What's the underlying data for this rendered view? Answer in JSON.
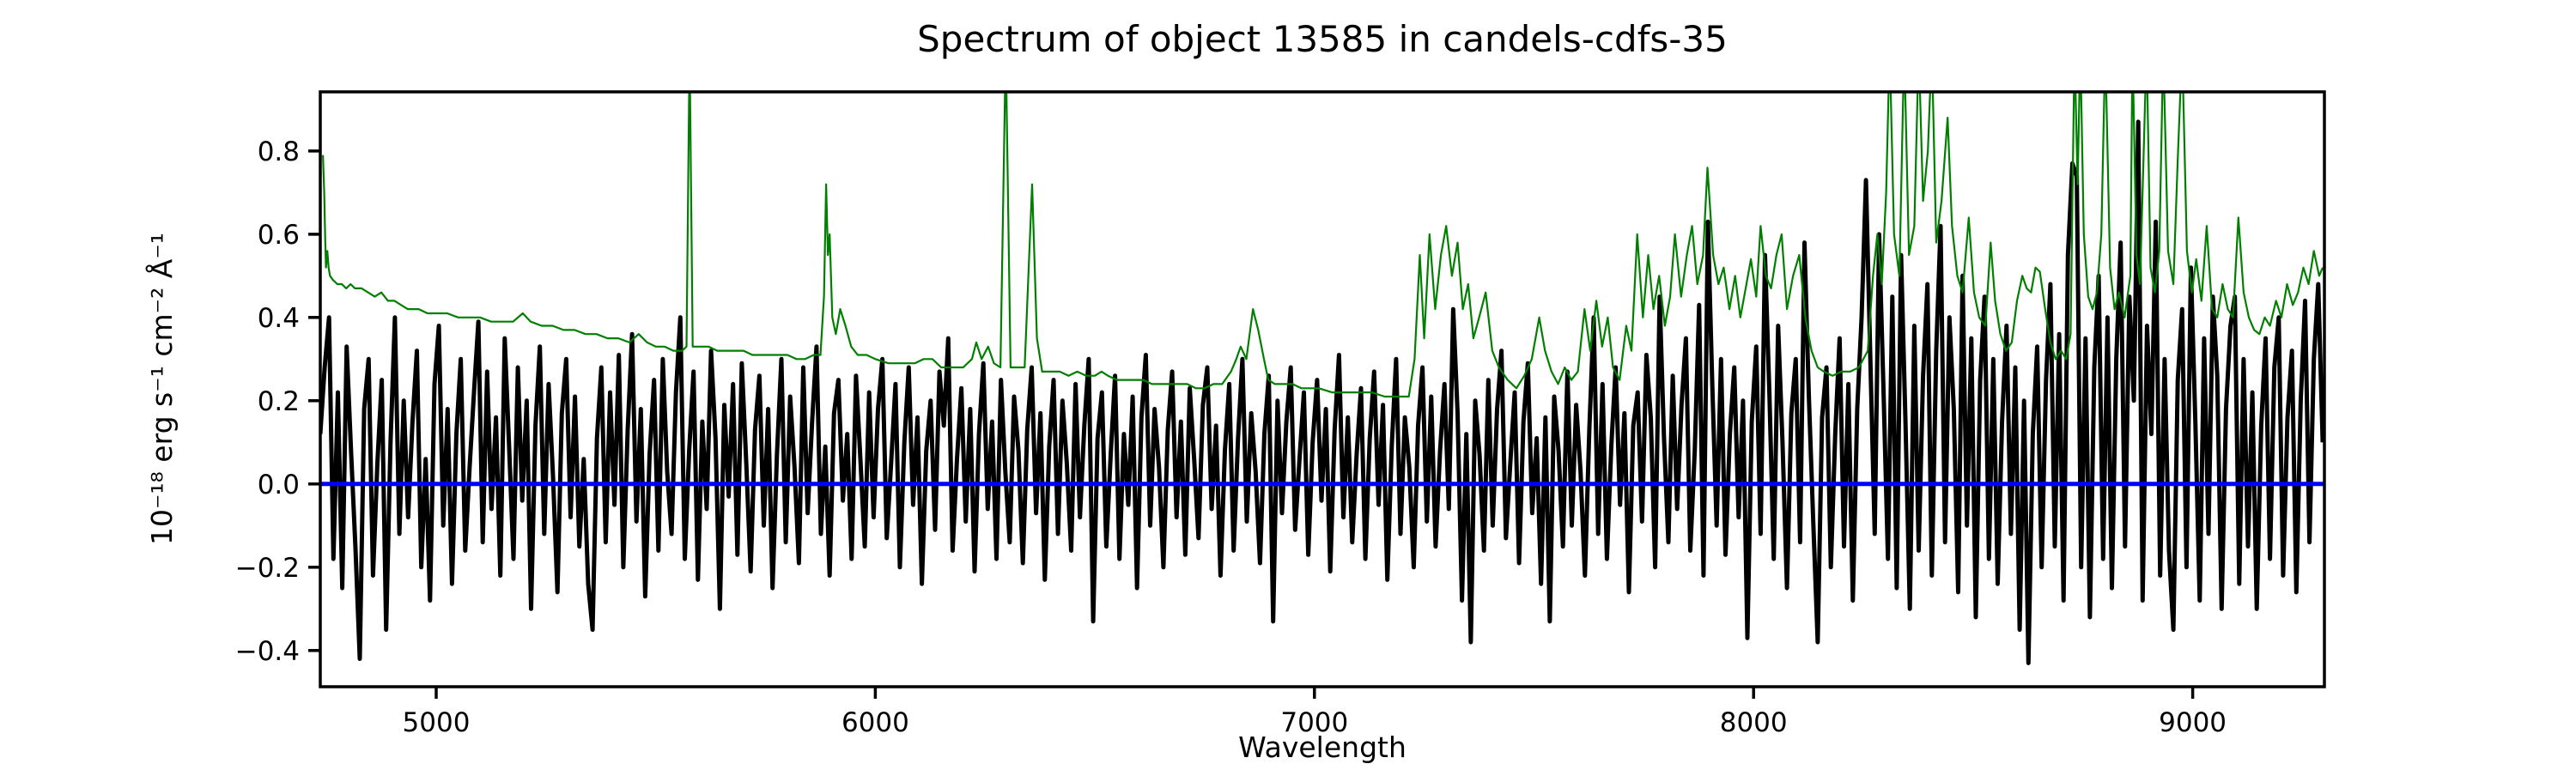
{
  "chart_data": {
    "type": "line",
    "title": "Spectrum of object 13585 in candels-cdfs-35",
    "xlabel": "Wavelength",
    "ylabel": "10⁻¹⁸ erg s⁻¹ cm⁻² Å⁻¹",
    "background": "#ffffff",
    "grid": false,
    "legend": "none",
    "xlim": [
      4736,
      9300
    ],
    "ylim": [
      -0.487,
      0.942
    ],
    "xticks": {
      "values": [
        5000,
        6000,
        7000,
        8000,
        9000
      ],
      "labels": [
        "5000",
        "6000",
        "7000",
        "8000",
        "9000"
      ]
    },
    "yticks": {
      "values": [
        -0.4,
        -0.2,
        0.0,
        0.2,
        0.4,
        0.6,
        0.8
      ],
      "labels": [
        "−0.4",
        "−0.2",
        "0.0",
        "0.2",
        "0.4",
        "0.6",
        "0.8"
      ]
    },
    "series": [
      {
        "name": "flux-spectrum",
        "color": "#000000",
        "line_width": 5,
        "x_start": 4736,
        "x_step": 10,
        "y_scale": 0.01,
        "values": [
          12,
          28,
          40,
          -18,
          22,
          -25,
          33,
          8,
          -15,
          -42,
          18,
          30,
          -22,
          5,
          25,
          -35,
          10,
          40,
          -12,
          20,
          -8,
          15,
          32,
          -20,
          6,
          -28,
          24,
          38,
          -10,
          18,
          -24,
          12,
          30,
          -16,
          4,
          22,
          39,
          -14,
          27,
          -6,
          16,
          -22,
          35,
          9,
          -18,
          28,
          -4,
          20,
          -30,
          14,
          33,
          -12,
          24,
          2,
          -26,
          17,
          30,
          -8,
          21,
          -15,
          6,
          -24,
          -35,
          11,
          28,
          -14,
          22,
          -5,
          31,
          -20,
          13,
          36,
          -9,
          18,
          -27,
          7,
          25,
          -16,
          30,
          3,
          -12,
          22,
          40,
          -18,
          8,
          27,
          -23,
          15,
          -6,
          32,
          11,
          -30,
          19,
          -3,
          24,
          -17,
          29,
          5,
          -21,
          13,
          26,
          -10,
          18,
          -25,
          7,
          30,
          -14,
          21,
          4,
          -19,
          28,
          -7,
          15,
          33,
          -12,
          9,
          -22,
          17,
          25,
          -4,
          12,
          -18,
          26,
          6,
          -15,
          22,
          -8,
          18,
          30,
          -13,
          5,
          24,
          -20,
          10,
          28,
          -5,
          16,
          -24,
          8,
          20,
          -11,
          27,
          14,
          35,
          -16,
          6,
          23,
          -9,
          18,
          -21,
          12,
          29,
          -6,
          15,
          -18,
          25,
          3,
          -14,
          21,
          8,
          -19,
          13,
          28,
          -7,
          17,
          -23,
          9,
          25,
          -12,
          20,
          5,
          -16,
          24,
          -8,
          14,
          30,
          -33,
          11,
          22,
          -15,
          7,
          26,
          -18,
          12,
          -5,
          21,
          -25,
          16,
          31,
          -10,
          18,
          4,
          -20,
          13,
          27,
          -8,
          15,
          -17,
          23,
          6,
          -13,
          19,
          28,
          -6,
          14,
          -22,
          8,
          24,
          -16,
          11,
          30,
          -9,
          17,
          3,
          -19,
          12,
          26,
          -33,
          20,
          -7,
          15,
          28,
          -11,
          6,
          22,
          -17,
          10,
          25,
          -4,
          18,
          -21,
          13,
          31,
          -8,
          16,
          -14,
          7,
          23,
          -18,
          11,
          27,
          -5,
          19,
          -23,
          9,
          30,
          -12,
          16,
          4,
          -20,
          14,
          28,
          -9,
          21,
          -15,
          8,
          24,
          -6,
          42,
          17,
          -28,
          12,
          -38,
          20,
          7,
          -16,
          25,
          -10,
          18,
          32,
          -13,
          5,
          22,
          -19,
          15,
          29,
          -7,
          11,
          -24,
          16,
          -33,
          21,
          8,
          -15,
          27,
          -10,
          19,
          3,
          -22,
          13,
          40,
          -12,
          24,
          -18,
          9,
          28,
          -5,
          17,
          -26,
          14,
          22,
          -9,
          31,
          16,
          -20,
          45,
          11,
          -14,
          26,
          -6,
          19,
          35,
          -16,
          8,
          43,
          -22,
          63,
          24,
          -10,
          30,
          -17,
          12,
          28,
          -8,
          20,
          -37,
          15,
          33,
          -12,
          55,
          22,
          -18,
          38,
          10,
          -25,
          17,
          30,
          -14,
          58,
          21,
          -9,
          -38,
          16,
          28,
          -20,
          12,
          35,
          -15,
          24,
          -28,
          18,
          40,
          73,
          30,
          -12,
          60,
          22,
          -18,
          45,
          -25,
          55,
          15,
          -30,
          38,
          -16,
          26,
          48,
          -22,
          32,
          62,
          -14,
          40,
          18,
          -26,
          50,
          -10,
          35,
          -32,
          25,
          45,
          -18,
          30,
          -24,
          15,
          38,
          -12,
          28,
          -35,
          20,
          -43,
          12,
          33,
          -20,
          25,
          48,
          -15,
          36,
          -28,
          55,
          77,
          74,
          -20,
          35,
          -32,
          28,
          50,
          -18,
          40,
          -25,
          30,
          58,
          -15,
          45,
          20,
          87,
          -28,
          38,
          12,
          63,
          -22,
          30,
          -16,
          -35,
          25,
          42,
          -20,
          52,
          15,
          -28,
          35,
          -12,
          45,
          26,
          -30,
          18,
          38,
          45,
          -24,
          30,
          -15,
          22,
          -30,
          14,
          35,
          -18,
          28,
          40,
          -22,
          16,
          32,
          -26,
          20,
          44,
          -14,
          30,
          48,
          10
        ]
      },
      {
        "name": "noise-spectrum",
        "color": "#007f00",
        "line_width": 2.2,
        "y_scale": 0.01,
        "xy": [
          4742,
          79,
          4745,
          70,
          4747,
          60,
          4749,
          52,
          4752,
          56,
          4755,
          52,
          4758,
          50,
          4765,
          49,
          4775,
          48,
          4785,
          48,
          4795,
          47,
          4805,
          48,
          4815,
          47,
          4830,
          47,
          4845,
          46,
          4860,
          45,
          4875,
          46,
          4890,
          44,
          4905,
          44,
          4920,
          43,
          4935,
          42,
          4960,
          42,
          4980,
          41,
          5000,
          41,
          5025,
          41,
          5050,
          40,
          5075,
          40,
          5100,
          40,
          5125,
          39,
          5150,
          39,
          5175,
          39,
          5197,
          41,
          5215,
          39,
          5240,
          38,
          5265,
          38,
          5290,
          37,
          5315,
          37,
          5340,
          36,
          5365,
          36,
          5390,
          35,
          5415,
          35,
          5440,
          34,
          5461,
          36,
          5480,
          34,
          5500,
          33,
          5520,
          33,
          5540,
          32,
          5560,
          32,
          5570,
          33,
          5577,
          105,
          5584,
          33,
          5600,
          33,
          5620,
          33,
          5640,
          32,
          5660,
          32,
          5680,
          32,
          5700,
          32,
          5720,
          31,
          5740,
          31,
          5760,
          31,
          5780,
          31,
          5800,
          31,
          5820,
          30,
          5840,
          30,
          5860,
          31,
          5875,
          31,
          5883,
          45,
          5888,
          72,
          5892,
          55,
          5896,
          60,
          5902,
          40,
          5910,
          36,
          5920,
          42,
          5932,
          38,
          5945,
          33,
          5960,
          31,
          5980,
          31,
          6000,
          30,
          6030,
          29,
          6060,
          29,
          6090,
          29,
          6110,
          30,
          6130,
          30,
          6150,
          28,
          6175,
          28,
          6200,
          28,
          6220,
          30,
          6230,
          34,
          6242,
          30,
          6257,
          33,
          6270,
          29,
          6285,
          28,
          6297,
          105,
          6308,
          28,
          6320,
          28,
          6340,
          28,
          6357,
          72,
          6368,
          35,
          6380,
          27,
          6400,
          27,
          6420,
          27,
          6440,
          26,
          6460,
          27,
          6480,
          26,
          6500,
          26,
          6515,
          27,
          6530,
          26,
          6550,
          25,
          6570,
          25,
          6590,
          25,
          6610,
          25,
          6630,
          24,
          6650,
          24,
          6670,
          24,
          6690,
          24,
          6710,
          24,
          6730,
          23,
          6750,
          23,
          6770,
          24,
          6790,
          24,
          6810,
          27,
          6822,
          30,
          6832,
          33,
          6845,
          30,
          6860,
          42,
          6872,
          37,
          6885,
          30,
          6895,
          25,
          6910,
          24,
          6930,
          24,
          6950,
          24,
          6970,
          23,
          6990,
          23,
          7010,
          23,
          7040,
          22,
          7070,
          22,
          7100,
          22,
          7130,
          22,
          7160,
          21,
          7190,
          21,
          7215,
          21,
          7228,
          30,
          7240,
          55,
          7250,
          35,
          7262,
          60,
          7275,
          42,
          7288,
          55,
          7300,
          62,
          7313,
          50,
          7326,
          58,
          7338,
          42,
          7350,
          48,
          7362,
          35,
          7375,
          40,
          7390,
          46,
          7405,
          32,
          7420,
          28,
          7440,
          25,
          7460,
          23,
          7478,
          26,
          7495,
          30,
          7512,
          40,
          7525,
          32,
          7540,
          27,
          7555,
          24,
          7570,
          28,
          7585,
          25,
          7600,
          27,
          7615,
          42,
          7628,
          32,
          7642,
          44,
          7655,
          33,
          7668,
          40,
          7680,
          28,
          7695,
          25,
          7710,
          38,
          7722,
          32,
          7735,
          60,
          7748,
          40,
          7760,
          55,
          7772,
          42,
          7785,
          50,
          7798,
          38,
          7810,
          45,
          7821,
          60,
          7835,
          45,
          7848,
          55,
          7860,
          62,
          7872,
          48,
          7885,
          55,
          7895,
          76,
          7908,
          55,
          7920,
          48,
          7932,
          52,
          7945,
          42,
          7958,
          50,
          7970,
          40,
          7982,
          47,
          7994,
          54,
          8006,
          45,
          8016,
          62,
          8028,
          50,
          8040,
          47,
          8052,
          55,
          8064,
          60,
          8076,
          42,
          8090,
          50,
          8104,
          55,
          8118,
          40,
          8132,
          32,
          8146,
          28,
          8160,
          27,
          8180,
          26,
          8200,
          27,
          8220,
          27,
          8240,
          28,
          8260,
          32,
          8272,
          50,
          8282,
          60,
          8292,
          48,
          8302,
          70,
          8310,
          105,
          8320,
          60,
          8332,
          50,
          8343,
          105,
          8354,
          55,
          8366,
          62,
          8376,
          105,
          8386,
          68,
          8397,
          80,
          8406,
          105,
          8416,
          58,
          8428,
          68,
          8442,
          88,
          8452,
          62,
          8464,
          50,
          8476,
          46,
          8490,
          64,
          8502,
          46,
          8514,
          40,
          8528,
          38,
          8540,
          58,
          8550,
          44,
          8562,
          36,
          8575,
          32,
          8588,
          34,
          8600,
          44,
          8612,
          50,
          8622,
          47,
          8632,
          46,
          8642,
          52,
          8652,
          51,
          8664,
          42,
          8676,
          34,
          8688,
          30,
          8700,
          32,
          8712,
          30,
          8722,
          36,
          8731,
          105,
          8738,
          72,
          8744,
          105,
          8752,
          60,
          8762,
          45,
          8772,
          42,
          8782,
          46,
          8792,
          60,
          8801,
          105,
          8812,
          52,
          8822,
          42,
          8832,
          46,
          8845,
          40,
          8858,
          50,
          8863,
          105,
          8872,
          55,
          8880,
          48,
          8888,
          78,
          8895,
          105,
          8904,
          52,
          8914,
          46,
          8924,
          56,
          8933,
          105,
          8944,
          56,
          8956,
          48,
          8966,
          78,
          8976,
          105,
          8987,
          56,
          8998,
          46,
          9008,
          54,
          9020,
          44,
          9032,
          62,
          9044,
          42,
          9056,
          40,
          9068,
          48,
          9080,
          42,
          9092,
          40,
          9104,
          64,
          9116,
          46,
          9128,
          40,
          9140,
          37,
          9152,
          36,
          9164,
          40,
          9176,
          38,
          9190,
          44,
          9202,
          40,
          9215,
          48,
          9228,
          43,
          9240,
          46,
          9252,
          52,
          9264,
          48,
          9276,
          56,
          9288,
          50,
          9296,
          52
        ]
      },
      {
        "name": "zero-line",
        "color": "#0000ff",
        "line_width": 5,
        "y": 0
      }
    ]
  }
}
